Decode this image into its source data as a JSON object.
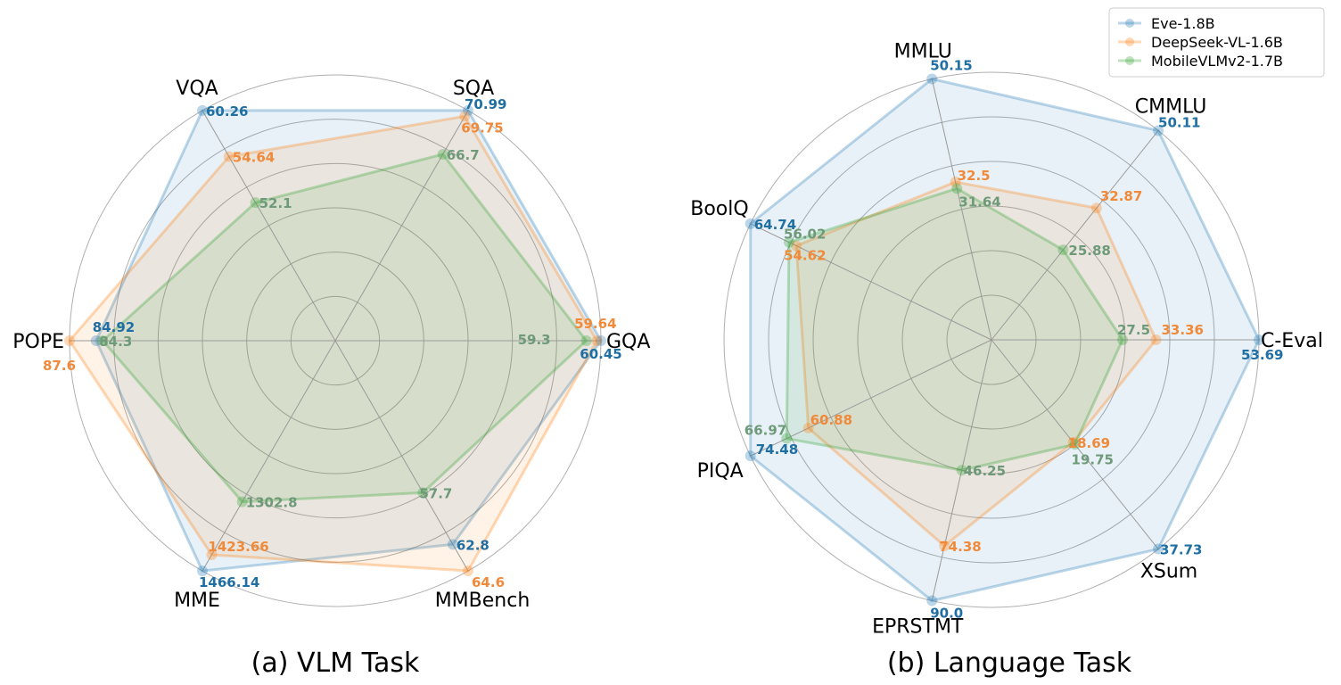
{
  "legend": {
    "position": "top-right",
    "entries": [
      {
        "name": "Eve-1.8B",
        "color": "#1f77b4"
      },
      {
        "name": "DeepSeek-VL-1.6B",
        "color": "#ff7f0e"
      },
      {
        "name": "MobileVLMv2-1.7B",
        "color": "#2ca02c"
      }
    ]
  },
  "label_colors": [
    "#1f6fa3",
    "#f08a3a",
    "#6f9a7a"
  ],
  "chart_data": [
    {
      "type": "radar",
      "caption": "(a) VLM Task",
      "axes": [
        "GQA",
        "SQA",
        "VQA",
        "POPE",
        "MME",
        "MMBench"
      ],
      "grid": true,
      "series": [
        {
          "name": "Eve-1.8B",
          "values": [
            60.45,
            70.99,
            60.26,
            84.92,
            1466.14,
            62.8
          ],
          "labels": [
            "60.45",
            "70.99",
            "60.26",
            "84.92",
            "1466.14",
            "62.8"
          ],
          "radius": [
            1.0,
            1.0,
            1.0,
            0.9,
            1.0,
            0.885
          ]
        },
        {
          "name": "DeepSeek-VL-1.6B",
          "values": [
            59.64,
            69.75,
            54.64,
            87.6,
            1423.66,
            64.6
          ],
          "labels": [
            "59.64",
            "69.75",
            "54.64",
            "87.6",
            "1423.66",
            "64.6"
          ],
          "radius": [
            0.985,
            0.975,
            0.8,
            1.0,
            0.93,
            1.0
          ]
        },
        {
          "name": "MobileVLMv2-1.7B",
          "values": [
            59.3,
            66.7,
            52.1,
            84.3,
            1302.8,
            57.7
          ],
          "labels": [
            "59.3",
            "66.7",
            "52.1",
            "84.3",
            "1302.8",
            "57.7"
          ],
          "radius": [
            0.945,
            0.81,
            0.6,
            0.875,
            0.7,
            0.66
          ]
        }
      ]
    },
    {
      "type": "radar",
      "caption": "(b) Language Task",
      "axes": [
        "C-Eval",
        "CMMLU",
        "MMLU",
        "BoolQ",
        "PIQA",
        "EPRSTMT",
        "XSum"
      ],
      "grid": true,
      "series": [
        {
          "name": "Eve-1.8B",
          "values": [
            53.69,
            50.11,
            50.15,
            64.74,
            74.48,
            90.0,
            37.73
          ],
          "labels": [
            "53.69",
            "50.11",
            "50.15",
            "64.74",
            "74.48",
            "90.0",
            "37.73"
          ],
          "radius": [
            1.0,
            1.0,
            1.0,
            1.0,
            1.0,
            1.0,
            1.0
          ]
        },
        {
          "name": "DeepSeek-VL-1.6B",
          "values": [
            33.36,
            32.87,
            32.5,
            54.62,
            60.88,
            74.38,
            18.69
          ],
          "labels": [
            "33.36",
            "32.87",
            "32.5",
            "54.62",
            "60.88",
            "74.38",
            "18.69"
          ],
          "radius": [
            0.615,
            0.63,
            0.605,
            0.81,
            0.76,
            0.79,
            0.49
          ]
        },
        {
          "name": "MobileVLMv2-1.7B",
          "values": [
            27.5,
            25.88,
            31.64,
            56.02,
            66.97,
            46.25,
            19.75
          ],
          "labels": [
            "27.5",
            "25.88",
            "31.64",
            "56.02",
            "66.97",
            "46.25",
            "19.75"
          ],
          "radius": [
            0.49,
            0.43,
            0.58,
            0.84,
            0.85,
            0.5,
            0.5
          ]
        }
      ]
    }
  ]
}
